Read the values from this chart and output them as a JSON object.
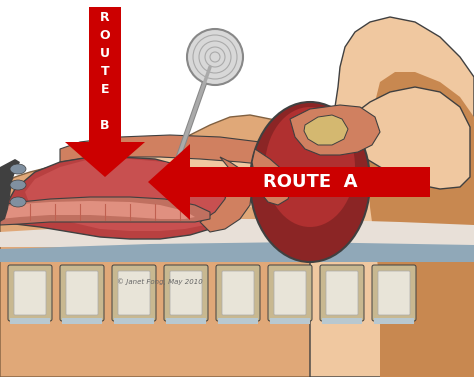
{
  "fig_width": 4.74,
  "fig_height": 3.77,
  "dpi": 100,
  "bg_color": "#ffffff",
  "arrow_color": "#cc0000",
  "route_a_text": "ROUTE  A",
  "route_b_letters": [
    "R",
    "O",
    "U",
    "T",
    "E",
    "",
    "B"
  ],
  "watermark": "© Janet Fong, May 2010",
  "anatomy": {
    "skin_light": "#f0c8a0",
    "skin_mid": "#e0a878",
    "skin_dark": "#c88850",
    "tongue_red": "#b84040",
    "tongue_dark": "#8b2020",
    "pharynx_dark": "#8b2525",
    "pharynx_mid": "#b03030",
    "soft_palate": "#d08060",
    "trachea_gray": "#d0c8c0",
    "trachea_light": "#e8e0d8",
    "cartilage_blue": "#90a8b8",
    "spine_white": "#e8e4d8",
    "spine_tan": "#c8b890",
    "spine_blue": "#b8c8d0",
    "outline": "#404040",
    "outline_light": "#806040",
    "instrument_gray": "#aaaaaa",
    "instrument_dark": "#888888"
  }
}
